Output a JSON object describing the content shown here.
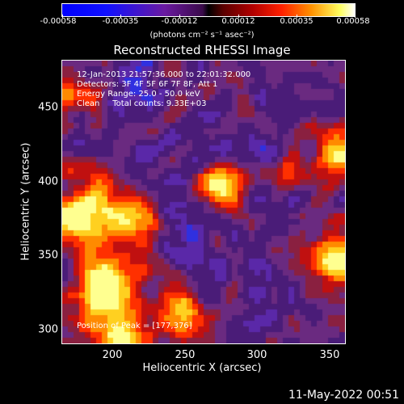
{
  "colorbar": {
    "ticks": [
      "-0.00058",
      "-0.00035",
      "-0.00012",
      "0.00012",
      "0.00035",
      "0.00058"
    ],
    "unit": "(photons cm⁻² s⁻¹ asec⁻²)"
  },
  "title": "Reconstructed RHESSI Image",
  "info": {
    "time_range": "12-Jan-2013 21:57:36.000 to 22:01:32.000",
    "detectors": "Detectors: 3F 4F 5F 6F 7F 8F, Att 1",
    "energy": "Energy Range: 25.0 - 50.0 keV",
    "method": "Clean     Total counts: 9.33E+03",
    "peak": "Position of Peak = [177,376]"
  },
  "axes": {
    "xlabel": "Heliocentric X (arcsec)",
    "ylabel": "Heliocentric Y (arcsec)",
    "xticks": [
      "200",
      "250",
      "300",
      "350"
    ],
    "yticks": [
      "450",
      "400",
      "350",
      "300"
    ]
  },
  "footer": {
    "date": "11-May-2022 00:51"
  }
}
